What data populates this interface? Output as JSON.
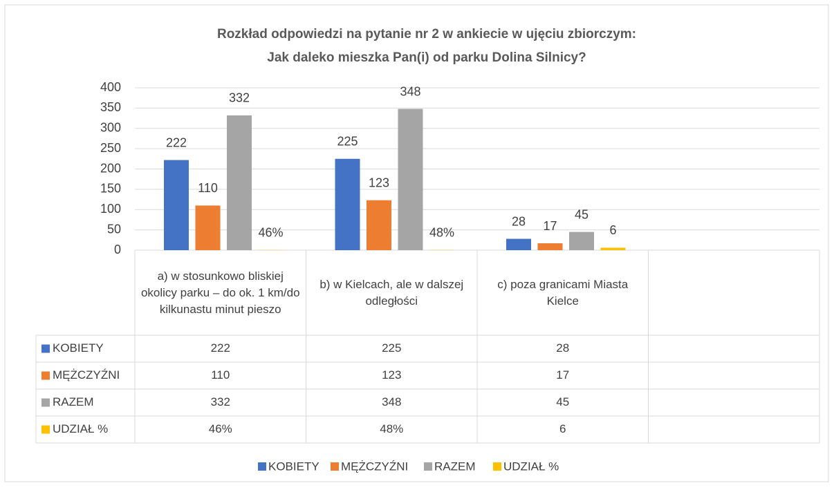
{
  "chart_data": {
    "type": "bar",
    "title": "Rozkład odpowiedzi na pytanie nr 2 w ankiecie w ujęciu zbiorczym:",
    "subtitle": "Jak daleko mieszka Pan(i) od parku Dolina Silnicy?",
    "categories": [
      "a)      w stosunkowo bliskiej okolicy parku – do ok. 1 km/do kilkunastu minut pieszo",
      "b)      w Kielcach, ale w dalszej odległości",
      "c)      poza granicami Miasta Kielce",
      null
    ],
    "series": [
      {
        "name": "KOBIETY",
        "color": "#4472c4",
        "values": [
          222,
          225,
          28,
          null
        ]
      },
      {
        "name": "MĘŻCZYŹNI",
        "color": "#ed7d31",
        "values": [
          110,
          123,
          17,
          null
        ]
      },
      {
        "name": "RAZEM",
        "color": "#a5a5a5",
        "values": [
          332,
          348,
          45,
          null
        ]
      },
      {
        "name": "UDZIAŁ %",
        "color": "#ffc000",
        "values": [
          0.46,
          0.48,
          6,
          null
        ],
        "value_labels": [
          "46%",
          "48%",
          "6",
          null
        ]
      }
    ],
    "ylim": [
      0,
      400
    ],
    "yticks": [
      0,
      50,
      100,
      150,
      200,
      250,
      300,
      350,
      400
    ],
    "grid": true,
    "legend": "bottom"
  }
}
